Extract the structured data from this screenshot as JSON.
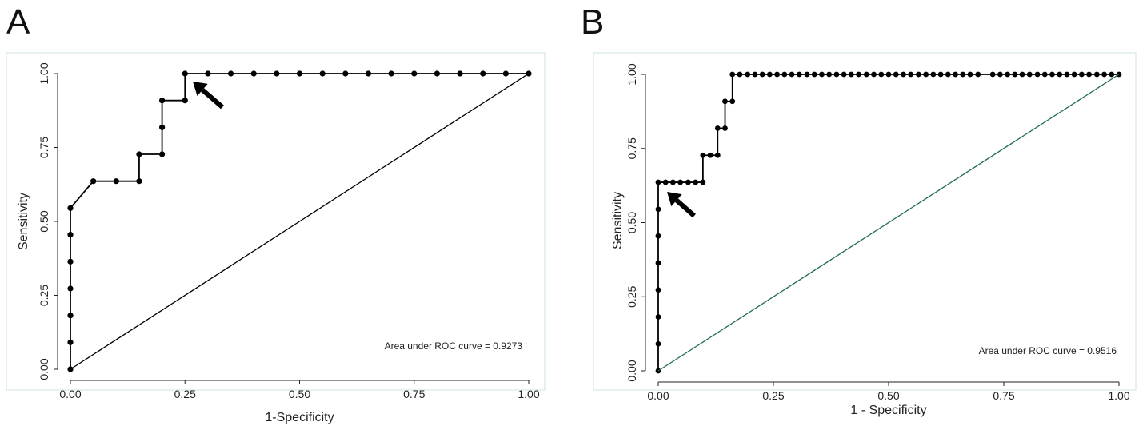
{
  "panels": [
    {
      "label": "A"
    },
    {
      "label": "B"
    }
  ],
  "chart_data": [
    {
      "type": "line",
      "panel": "A",
      "xlabel": "1-Specificity",
      "ylabel": "Sensitivity",
      "annotation": "Area under ROC curve = 0.9273",
      "xlim": [
        0,
        1
      ],
      "ylim": [
        0,
        1
      ],
      "xticks": [
        "0.00",
        "0.25",
        "0.50",
        "0.75",
        "1.00"
      ],
      "yticks": [
        "0.00",
        "0.25",
        "0.50",
        "0.75",
        "1.00"
      ],
      "grid": false,
      "series": [
        {
          "kind": "roc",
          "color": "#000000",
          "x": [
            0,
            0,
            0,
            0,
            0,
            0,
            0,
            0.05,
            0.1,
            0.15,
            0.15,
            0.2,
            0.2,
            0.2,
            0.25,
            0.25,
            0.3,
            0.35,
            0.4,
            0.45,
            0.5,
            0.55,
            0.6,
            0.65,
            0.7,
            0.75,
            0.8,
            0.85,
            0.9,
            0.95,
            1.0
          ],
          "y": [
            0,
            0.091,
            0.182,
            0.273,
            0.364,
            0.455,
            0.545,
            0.636,
            0.636,
            0.636,
            0.727,
            0.727,
            0.818,
            0.909,
            0.909,
            1.0,
            1.0,
            1.0,
            1.0,
            1.0,
            1.0,
            1.0,
            1.0,
            1.0,
            1.0,
            1.0,
            1.0,
            1.0,
            1.0,
            1.0,
            1.0
          ]
        },
        {
          "kind": "reference",
          "color": "#000000",
          "x": [
            0,
            1
          ],
          "y": [
            0,
            1
          ]
        }
      ],
      "arrow_target": {
        "x": 0.25,
        "y": 1.0
      }
    },
    {
      "type": "line",
      "panel": "B",
      "xlabel": "1 - Specificity",
      "ylabel": "Sensitivity",
      "annotation": "Area under ROC curve = 0.9516",
      "xlim": [
        0,
        1
      ],
      "ylim": [
        0,
        1
      ],
      "xticks": [
        "0.00",
        "0.25",
        "0.50",
        "0.75",
        "1.00"
      ],
      "yticks": [
        "0.00",
        "0.25",
        "0.50",
        "0.75",
        "1.00"
      ],
      "grid": false,
      "series": [
        {
          "kind": "roc",
          "color": "#000000",
          "x": [
            0,
            0,
            0,
            0,
            0,
            0,
            0,
            0,
            0.016,
            0.032,
            0.048,
            0.065,
            0.081,
            0.097,
            0.097,
            0.113,
            0.129,
            0.129,
            0.145,
            0.145,
            0.161,
            0.161,
            0.177,
            0.194,
            0.21,
            0.226,
            0.242,
            0.258,
            0.274,
            0.29,
            0.306,
            0.323,
            0.339,
            0.355,
            0.371,
            0.387,
            0.403,
            0.419,
            0.435,
            0.452,
            0.468,
            0.484,
            0.5,
            0.516,
            0.532,
            0.548,
            0.565,
            0.581,
            0.597,
            0.613,
            0.629,
            0.645,
            0.661,
            0.677,
            0.694,
            0.726,
            0.742,
            0.758,
            0.774,
            0.79,
            0.806,
            0.823,
            0.839,
            0.855,
            0.871,
            0.887,
            0.903,
            0.919,
            0.935,
            0.952,
            0.968,
            0.984,
            1.0
          ],
          "y": [
            0,
            0.091,
            0.182,
            0.273,
            0.364,
            0.455,
            0.545,
            0.636,
            0.636,
            0.636,
            0.636,
            0.636,
            0.636,
            0.636,
            0.727,
            0.727,
            0.727,
            0.818,
            0.818,
            0.909,
            0.909,
            1.0,
            1.0,
            1.0,
            1.0,
            1.0,
            1.0,
            1.0,
            1.0,
            1.0,
            1.0,
            1.0,
            1.0,
            1.0,
            1.0,
            1.0,
            1.0,
            1.0,
            1.0,
            1.0,
            1.0,
            1.0,
            1.0,
            1.0,
            1.0,
            1.0,
            1.0,
            1.0,
            1.0,
            1.0,
            1.0,
            1.0,
            1.0,
            1.0,
            1.0,
            1.0,
            1.0,
            1.0,
            1.0,
            1.0,
            1.0,
            1.0,
            1.0,
            1.0,
            1.0,
            1.0,
            1.0,
            1.0,
            1.0,
            1.0,
            1.0,
            1.0,
            1.0
          ]
        },
        {
          "kind": "reference",
          "color": "#1f6b5c",
          "x": [
            0,
            1
          ],
          "y": [
            0,
            1
          ]
        }
      ],
      "arrow_target": {
        "x": 0.0,
        "y": 0.636
      }
    }
  ],
  "colors": {
    "frame": "#cfe3e0",
    "axis": "#222222",
    "curve": "#000000",
    "reference_b": "#1f6b5c"
  }
}
